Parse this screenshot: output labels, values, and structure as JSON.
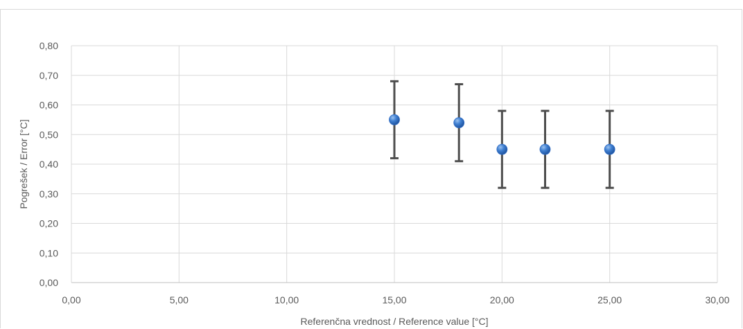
{
  "chart_data": {
    "type": "scatter",
    "title": "",
    "xlabel": "Referenčna vrednost / Reference value [°C]",
    "ylabel": "Pogrešek / Error [°C]",
    "xlim": [
      0,
      30
    ],
    "ylim": [
      0,
      0.8
    ],
    "x_ticks": [
      0,
      5,
      10,
      15,
      20,
      25,
      30
    ],
    "y_ticks": [
      0,
      0.1,
      0.2,
      0.3,
      0.4,
      0.5,
      0.6,
      0.7,
      0.8
    ],
    "x_tick_labels": [
      "0,00",
      "5,00",
      "10,00",
      "15,00",
      "20,00",
      "25,00",
      "30,00"
    ],
    "y_tick_labels": [
      "0,00",
      "0,10",
      "0,20",
      "0,30",
      "0,40",
      "0,50",
      "0,60",
      "0,70",
      "0,80"
    ],
    "grid": true,
    "legend": "none",
    "series": [
      {
        "marker_color": "#2e6bc4",
        "error_bar_color": "#4d4d4d",
        "points": [
          {
            "x": 15,
            "y": 0.55,
            "err_low": 0.42,
            "err_high": 0.68
          },
          {
            "x": 18,
            "y": 0.54,
            "err_low": 0.41,
            "err_high": 0.67
          },
          {
            "x": 20,
            "y": 0.45,
            "err_low": 0.32,
            "err_high": 0.58
          },
          {
            "x": 22,
            "y": 0.45,
            "err_low": 0.32,
            "err_high": 0.58
          },
          {
            "x": 25,
            "y": 0.45,
            "err_low": 0.32,
            "err_high": 0.58
          }
        ]
      }
    ]
  }
}
